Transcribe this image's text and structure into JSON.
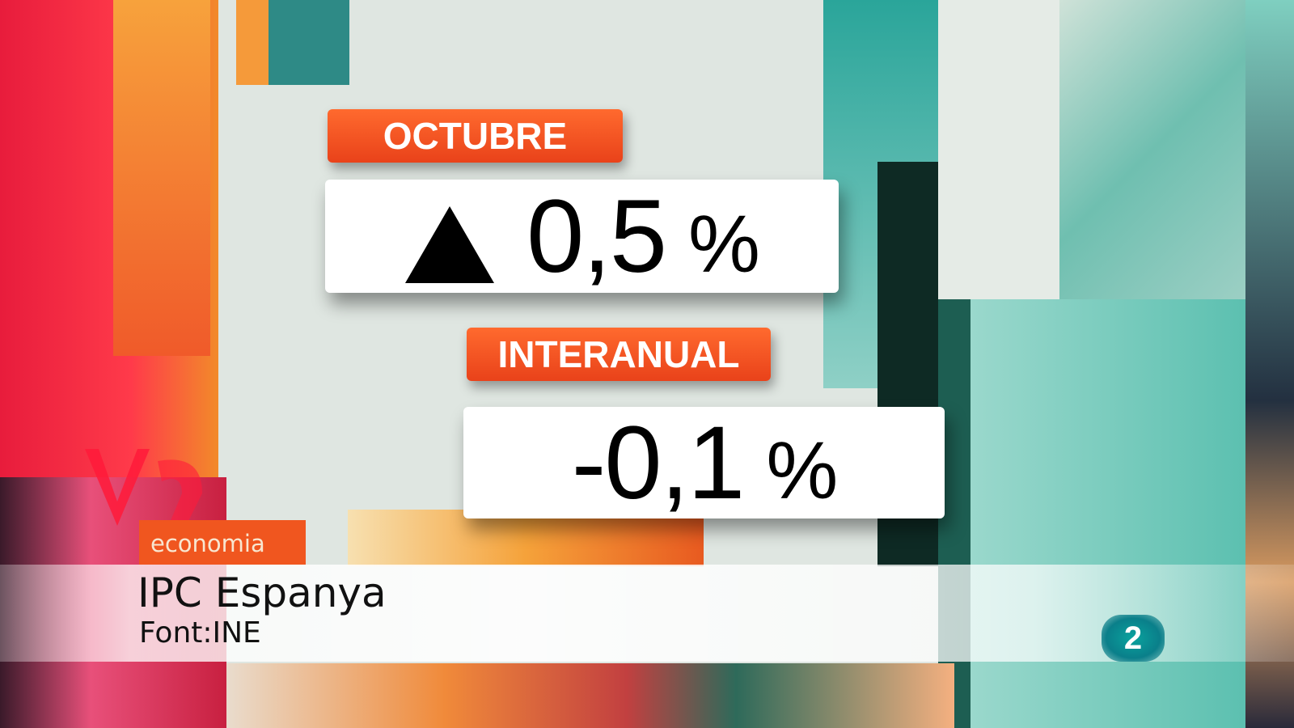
{
  "graphic": {
    "label1": "OCTUBRE",
    "value1": "0,5",
    "value1_trend": "up-triangle-icon",
    "percent": "%",
    "label2": "INTERANUAL",
    "value2": "-0,1"
  },
  "lower_third": {
    "section": "economia",
    "title": "IPC Espanya",
    "source": "Font:INE"
  },
  "channel_logo": "2",
  "colors": {
    "accent": "#f0561f",
    "logo": "#0a9a96"
  }
}
